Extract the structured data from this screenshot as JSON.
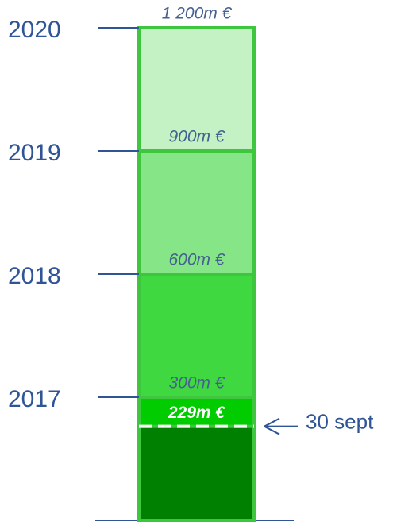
{
  "chart_data": {
    "type": "bar",
    "ylim": [
      0,
      1200
    ],
    "levels": [
      300,
      600,
      900,
      1200
    ],
    "value_labels": [
      "300m €",
      "600m €",
      "900m €",
      "1 200m €"
    ],
    "yticks": [
      {
        "value": 300,
        "label": "2017"
      },
      {
        "value": 600,
        "label": "2018"
      },
      {
        "value": 900,
        "label": "2019"
      },
      {
        "value": 1200,
        "label": "2020"
      }
    ],
    "colors": [
      "#00cc00",
      "#40d840",
      "#86e586",
      "#c4f2c4"
    ],
    "current": {
      "value": 229,
      "label": "229m €",
      "annotation": "30 sept",
      "color": "#008000"
    }
  }
}
